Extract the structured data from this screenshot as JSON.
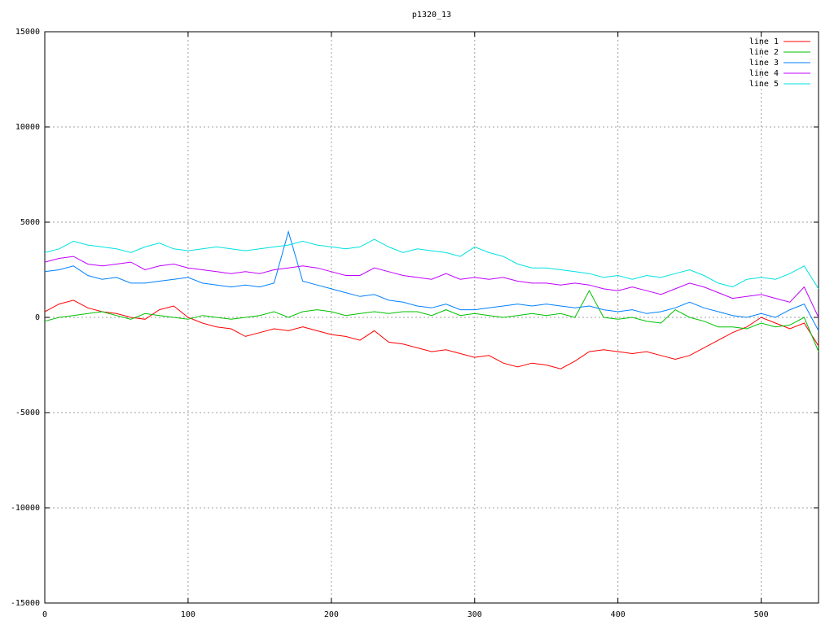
{
  "chart_data": {
    "type": "line",
    "title": "p1320_13",
    "x": [
      0,
      10,
      20,
      30,
      40,
      50,
      60,
      70,
      80,
      90,
      100,
      110,
      120,
      130,
      140,
      150,
      160,
      170,
      180,
      190,
      200,
      210,
      220,
      230,
      240,
      250,
      260,
      270,
      280,
      290,
      300,
      310,
      320,
      330,
      340,
      350,
      360,
      370,
      380,
      390,
      400,
      410,
      420,
      430,
      440,
      450,
      460,
      470,
      480,
      490,
      500,
      510,
      520,
      530,
      540
    ],
    "series": [
      {
        "name": "line 1",
        "color": "#ff0000",
        "values": [
          300,
          700,
          900,
          500,
          300,
          200,
          0,
          -100,
          400,
          600,
          0,
          -300,
          -500,
          -600,
          -1000,
          -800,
          -600,
          -700,
          -500,
          -700,
          -900,
          -1000,
          -1200,
          -700,
          -1300,
          -1400,
          -1600,
          -1800,
          -1700,
          -1900,
          -2100,
          -2000,
          -2400,
          -2600,
          -2400,
          -2500,
          -2700,
          -2300,
          -1800,
          -1700,
          -1800,
          -1900,
          -1800,
          -2000,
          -2200,
          -2000,
          -1600,
          -1200,
          -800,
          -500,
          0,
          -300,
          -600,
          -300,
          -1500
        ]
      },
      {
        "name": "line 2",
        "color": "#00c000",
        "values": [
          -200,
          0,
          100,
          200,
          300,
          100,
          -100,
          200,
          100,
          0,
          -100,
          100,
          0,
          -100,
          0,
          100,
          300,
          0,
          300,
          400,
          300,
          100,
          200,
          300,
          200,
          300,
          300,
          100,
          400,
          100,
          200,
          100,
          0,
          100,
          200,
          100,
          200,
          0,
          1400,
          0,
          -100,
          0,
          -200,
          -300,
          400,
          0,
          -200,
          -500,
          -500,
          -600,
          -300,
          -500,
          -400,
          0,
          -1800
        ]
      },
      {
        "name": "line 3",
        "color": "#0080ff",
        "values": [
          2400,
          2500,
          2700,
          2200,
          2000,
          2100,
          1800,
          1800,
          1900,
          2000,
          2100,
          1800,
          1700,
          1600,
          1700,
          1600,
          1800,
          4500,
          1900,
          1700,
          1500,
          1300,
          1100,
          1200,
          900,
          800,
          600,
          500,
          700,
          400,
          400,
          500,
          600,
          700,
          600,
          700,
          600,
          500,
          600,
          400,
          300,
          400,
          200,
          300,
          500,
          800,
          500,
          300,
          100,
          0,
          200,
          0,
          400,
          700,
          -700
        ]
      },
      {
        "name": "line 4",
        "color": "#c000ff",
        "values": [
          2900,
          3100,
          3200,
          2800,
          2700,
          2800,
          2900,
          2500,
          2700,
          2800,
          2600,
          2500,
          2400,
          2300,
          2400,
          2300,
          2500,
          2600,
          2700,
          2600,
          2400,
          2200,
          2200,
          2600,
          2400,
          2200,
          2100,
          2000,
          2300,
          2000,
          2100,
          2000,
          2100,
          1900,
          1800,
          1800,
          1700,
          1800,
          1700,
          1500,
          1400,
          1600,
          1400,
          1200,
          1500,
          1800,
          1600,
          1300,
          1000,
          1100,
          1200,
          1000,
          800,
          1600,
          0
        ]
      },
      {
        "name": "line 5",
        "color": "#00e0e0",
        "values": [
          3400,
          3600,
          4000,
          3800,
          3700,
          3600,
          3400,
          3700,
          3900,
          3600,
          3500,
          3600,
          3700,
          3600,
          3500,
          3600,
          3700,
          3800,
          4000,
          3800,
          3700,
          3600,
          3700,
          4100,
          3700,
          3400,
          3600,
          3500,
          3400,
          3200,
          3700,
          3400,
          3200,
          2800,
          2600,
          2600,
          2500,
          2400,
          2300,
          2100,
          2200,
          2000,
          2200,
          2100,
          2300,
          2500,
          2200,
          1800,
          1600,
          2000,
          2100,
          2000,
          2300,
          2700,
          1500
        ]
      }
    ],
    "xlim": [
      0,
      540
    ],
    "ylim": [
      -15000,
      15000
    ],
    "xticks": [
      0,
      100,
      200,
      300,
      400,
      500
    ],
    "yticks": [
      -15000,
      -10000,
      -5000,
      0,
      5000,
      10000,
      15000
    ],
    "grid": true,
    "legend": "top-right"
  }
}
